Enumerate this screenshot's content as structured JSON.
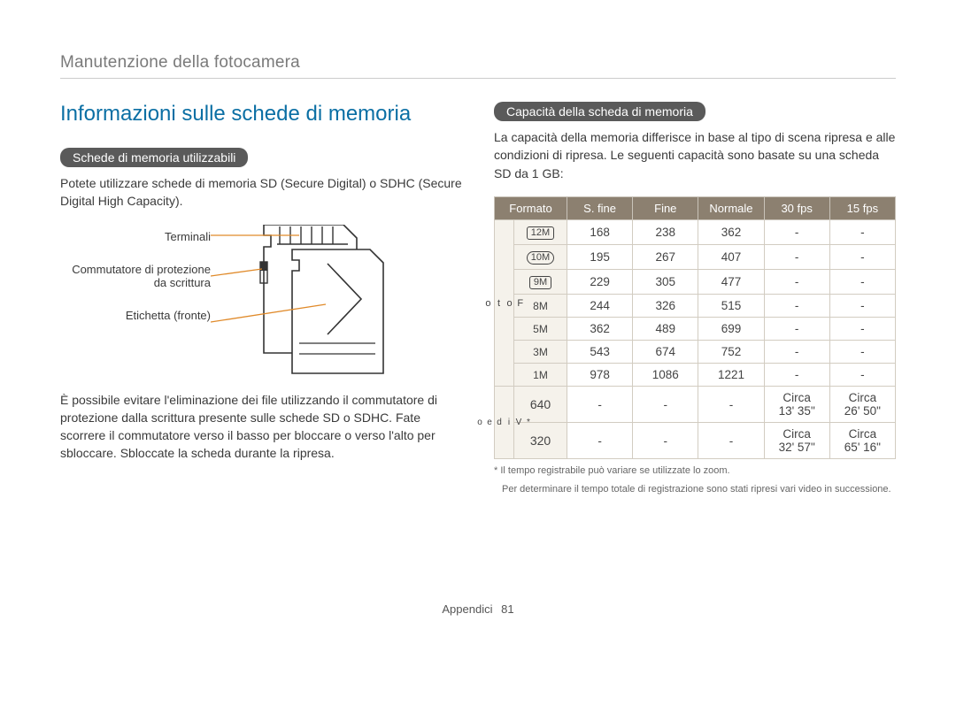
{
  "page_header": "Manutenzione della fotocamera",
  "main_title": "Informazioni sulle schede di memoria",
  "left": {
    "pill": "Schede di memoria utilizzabili",
    "intro": "Potete utilizzare schede di memoria SD (Secure Digital) o SDHC (Secure Digital High Capacity).",
    "diagram_labels": {
      "terminals": "Terminali",
      "write_protect": "Commutatore di protezione da scrittura",
      "label_front": "Etichetta (fronte)"
    },
    "note": "È possibile evitare l'eliminazione dei file utilizzando il commutatore di protezione dalla scrittura presente sulle schede SD o SDHC. Fate scorrere il commutatore verso il basso per bloccare o verso l'alto per sbloccare. Sbloccate la scheda durante la ripresa."
  },
  "right": {
    "pill": "Capacità della scheda di memoria",
    "intro": "La capacità della memoria differisce in base al tipo di scena ripresa e alle condizioni di ripresa. Le seguenti capacità sono basate su una scheda SD da 1 GB:",
    "headers": [
      "Formato",
      "S. fine",
      "Fine",
      "Normale",
      "30 fps",
      "15 fps"
    ],
    "side_photo": "Foto",
    "side_video": "* Video",
    "photo_rows": [
      {
        "format_label": "12M",
        "box": true,
        "sfine": "168",
        "fine": "238",
        "normal": "362",
        "fps30": "-",
        "fps15": "-"
      },
      {
        "format_label": "10M",
        "box": true,
        "rounded": true,
        "sfine": "195",
        "fine": "267",
        "normal": "407",
        "fps30": "-",
        "fps15": "-"
      },
      {
        "format_label": "9M",
        "box": true,
        "sfine": "229",
        "fine": "305",
        "normal": "477",
        "fps30": "-",
        "fps15": "-"
      },
      {
        "format_label": "8M",
        "box": false,
        "sfine": "244",
        "fine": "326",
        "normal": "515",
        "fps30": "-",
        "fps15": "-"
      },
      {
        "format_label": "5M",
        "box": false,
        "sfine": "362",
        "fine": "489",
        "normal": "699",
        "fps30": "-",
        "fps15": "-"
      },
      {
        "format_label": "3M",
        "box": false,
        "sfine": "543",
        "fine": "674",
        "normal": "752",
        "fps30": "-",
        "fps15": "-"
      },
      {
        "format_label": "1M",
        "box": false,
        "sfine": "978",
        "fine": "1086",
        "normal": "1221",
        "fps30": "-",
        "fps15": "-"
      }
    ],
    "video_rows": [
      {
        "format_label": "640",
        "sfine": "-",
        "fine": "-",
        "normal": "-",
        "fps30": "Circa 13' 35\"",
        "fps15": "Circa 26' 50\""
      },
      {
        "format_label": "320",
        "sfine": "-",
        "fine": "-",
        "normal": "-",
        "fps30": "Circa 32' 57\"",
        "fps15": "Circa 65' 16\""
      }
    ],
    "footnote1": "* Il tempo registrabile può variare se utilizzate lo zoom.",
    "footnote2": "Per determinare il tempo totale di registrazione sono stati ripresi vari video in successione."
  },
  "footer_section": "Appendici",
  "footer_page": "81",
  "colors": {
    "title": "#0b6fa4",
    "pill_bg": "#5a5a5a",
    "th_bg": "#8c8070",
    "cell_border": "#d2ccc1",
    "side_bg": "#f5f2eb",
    "callout_line": "#e08a2a"
  }
}
